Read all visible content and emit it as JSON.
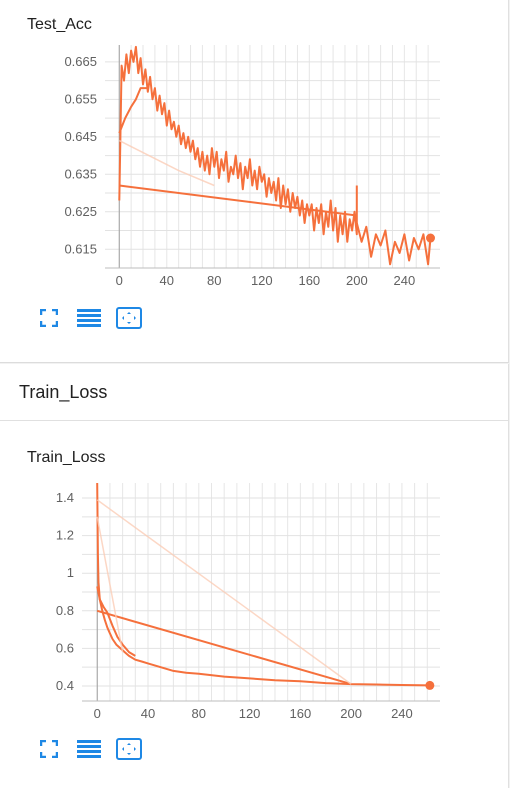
{
  "colors": {
    "accent": "#f5703c",
    "accent_light": "#fbcdb6",
    "icon_blue": "#1e88e5",
    "grid": "#dddddd",
    "tick_text": "#616161"
  },
  "cards": [
    {
      "title": "Test_Acc",
      "icons": [
        "fit-domain-icon",
        "toggle-log-icon",
        "expand-icon"
      ]
    },
    {
      "section_title": "Train_Loss",
      "title": "Train_Loss",
      "icons": [
        "fit-domain-icon",
        "toggle-log-icon",
        "expand-icon"
      ]
    }
  ],
  "chart_data": [
    {
      "type": "line",
      "title": "Test_Acc",
      "xlim": [
        -12,
        270
      ],
      "ylim": [
        0.61,
        0.6695
      ],
      "xticks": [
        "0",
        "40",
        "80",
        "120",
        "160",
        "200",
        "240"
      ],
      "xtick_values": [
        0,
        40,
        80,
        120,
        160,
        200,
        240
      ],
      "yticks": [
        "0.615",
        "0.625",
        "0.635",
        "0.645",
        "0.655",
        "0.665"
      ],
      "ytick_values": [
        0.615,
        0.625,
        0.635,
        0.645,
        0.655,
        0.665
      ],
      "series": [
        {
          "values": [
            [
              0,
              0.628
            ],
            [
              1,
              0.645
            ],
            [
              2,
              0.664
            ],
            [
              4,
              0.66
            ],
            [
              6,
              0.667
            ],
            [
              8,
              0.662
            ],
            [
              10,
              0.668
            ],
            [
              12,
              0.665
            ],
            [
              14,
              0.669
            ],
            [
              16,
              0.662
            ],
            [
              18,
              0.666
            ],
            [
              20,
              0.659
            ],
            [
              22,
              0.663
            ],
            [
              24,
              0.657
            ],
            [
              26,
              0.661
            ],
            [
              28,
              0.655
            ],
            [
              30,
              0.658
            ],
            [
              32,
              0.652
            ],
            [
              34,
              0.656
            ],
            [
              36,
              0.651
            ],
            [
              38,
              0.654
            ],
            [
              40,
              0.648
            ],
            [
              42,
              0.652
            ],
            [
              44,
              0.647
            ],
            [
              46,
              0.649
            ],
            [
              48,
              0.645
            ],
            [
              50,
              0.648
            ],
            [
              52,
              0.643
            ],
            [
              54,
              0.646
            ],
            [
              56,
              0.642
            ],
            [
              58,
              0.645
            ],
            [
              60,
              0.641
            ],
            [
              62,
              0.644
            ],
            [
              64,
              0.639
            ],
            [
              66,
              0.642
            ],
            [
              68,
              0.637
            ],
            [
              70,
              0.641
            ],
            [
              72,
              0.636
            ],
            [
              74,
              0.64
            ],
            [
              76,
              0.635
            ],
            [
              78,
              0.642
            ],
            [
              80,
              0.637
            ],
            [
              82,
              0.641
            ],
            [
              84,
              0.634
            ],
            [
              86,
              0.639
            ],
            [
              88,
              0.636
            ],
            [
              90,
              0.641
            ],
            [
              92,
              0.633
            ],
            [
              94,
              0.637
            ],
            [
              96,
              0.635
            ],
            [
              98,
              0.64
            ],
            [
              100,
              0.634
            ],
            [
              102,
              0.638
            ],
            [
              104,
              0.631
            ],
            [
              106,
              0.637
            ],
            [
              108,
              0.634
            ],
            [
              110,
              0.639
            ],
            [
              112,
              0.632
            ],
            [
              114,
              0.636
            ],
            [
              116,
              0.631
            ],
            [
              118,
              0.637
            ],
            [
              120,
              0.633
            ],
            [
              122,
              0.635
            ],
            [
              124,
              0.629
            ],
            [
              126,
              0.634
            ],
            [
              128,
              0.63
            ],
            [
              130,
              0.633
            ],
            [
              132,
              0.628
            ],
            [
              134,
              0.634
            ],
            [
              136,
              0.626
            ],
            [
              138,
              0.632
            ],
            [
              140,
              0.627
            ],
            [
              142,
              0.631
            ],
            [
              144,
              0.625
            ],
            [
              146,
              0.63
            ],
            [
              148,
              0.626
            ],
            [
              150,
              0.629
            ],
            [
              152,
              0.624
            ],
            [
              154,
              0.628
            ],
            [
              156,
              0.622
            ],
            [
              158,
              0.627
            ],
            [
              160,
              0.624
            ],
            [
              162,
              0.627
            ],
            [
              164,
              0.62
            ],
            [
              166,
              0.626
            ],
            [
              168,
              0.622
            ],
            [
              170,
              0.627
            ],
            [
              172,
              0.619
            ],
            [
              174,
              0.625
            ],
            [
              176,
              0.621
            ],
            [
              178,
              0.628
            ],
            [
              180,
              0.62
            ],
            [
              182,
              0.626
            ],
            [
              184,
              0.617
            ],
            [
              186,
              0.624
            ],
            [
              188,
              0.619
            ],
            [
              190,
              0.625
            ],
            [
              192,
              0.617
            ],
            [
              194,
              0.623
            ],
            [
              196,
              0.62
            ],
            [
              198,
              0.625
            ],
            [
              200,
              0.619
            ],
            [
              200,
              0.632
            ]
          ]
        },
        {
          "values": [
            [
              0,
              0.646
            ],
            [
              5,
              0.65
            ],
            [
              10,
              0.653
            ],
            [
              14,
              0.655
            ],
            [
              18,
              0.658
            ],
            [
              24,
              0.658
            ]
          ]
        },
        {
          "values": [
            [
              200,
              0.622
            ],
            [
              204,
              0.617
            ],
            [
              208,
              0.621
            ],
            [
              212,
              0.613
            ],
            [
              216,
              0.619
            ],
            [
              220,
              0.616
            ],
            [
              224,
              0.62
            ],
            [
              228,
              0.611
            ],
            [
              232,
              0.617
            ],
            [
              236,
              0.614
            ],
            [
              240,
              0.619
            ],
            [
              244,
              0.612
            ],
            [
              248,
              0.618
            ],
            [
              252,
              0.615
            ],
            [
              256,
              0.619
            ],
            [
              260,
              0.611
            ],
            [
              262,
              0.618
            ]
          ]
        },
        {
          "values": [
            [
              0,
              0.632
            ],
            [
              200,
              0.624
            ]
          ]
        },
        {
          "values": [
            [
              0,
              0.644
            ],
            [
              50,
              0.636
            ],
            [
              80,
              0.632
            ]
          ],
          "faint": true
        }
      ]
    },
    {
      "type": "line",
      "title": "Train_Loss",
      "xlim": [
        -12,
        270
      ],
      "ylim": [
        0.32,
        1.48
      ],
      "xticks": [
        "0",
        "40",
        "80",
        "120",
        "160",
        "200",
        "240"
      ],
      "xtick_values": [
        0,
        40,
        80,
        120,
        160,
        200,
        240
      ],
      "yticks": [
        "0.4",
        "0.6",
        "0.8",
        "1",
        "1.2",
        "1.4"
      ],
      "ytick_values": [
        0.4,
        0.6,
        0.8,
        1.0,
        1.2,
        1.4
      ],
      "series": [
        {
          "values": [
            [
              0,
              1.48
            ],
            [
              0.5,
              1.1
            ],
            [
              1,
              0.95
            ],
            [
              2,
              0.86
            ],
            [
              4,
              0.8
            ],
            [
              6,
              0.75
            ],
            [
              8,
              0.71
            ],
            [
              10,
              0.68
            ],
            [
              12,
              0.65
            ],
            [
              15,
              0.62
            ],
            [
              20,
              0.59
            ],
            [
              25,
              0.56
            ],
            [
              30,
              0.54
            ],
            [
              35,
              0.53
            ],
            [
              40,
              0.52
            ],
            [
              50,
              0.5
            ],
            [
              60,
              0.48
            ],
            [
              70,
              0.47
            ],
            [
              80,
              0.465
            ],
            [
              100,
              0.45
            ],
            [
              120,
              0.44
            ],
            [
              140,
              0.43
            ],
            [
              160,
              0.425
            ],
            [
              180,
              0.415
            ],
            [
              200,
              0.41
            ],
            [
              220,
              0.408
            ],
            [
              240,
              0.405
            ],
            [
              262,
              0.403
            ]
          ]
        },
        {
          "values": [
            [
              0,
              0.93
            ],
            [
              2,
              0.86
            ],
            [
              5,
              0.82
            ],
            [
              8,
              0.79
            ],
            [
              12,
              0.72
            ],
            [
              16,
              0.66
            ],
            [
              20,
              0.62
            ],
            [
              25,
              0.58
            ],
            [
              30,
              0.56
            ]
          ]
        },
        {
          "values": [
            [
              0,
              0.8
            ],
            [
              200,
              0.41
            ]
          ]
        },
        {
          "values": [
            [
              0,
              1.39
            ],
            [
              200,
              0.41
            ]
          ],
          "faint": true
        },
        {
          "values": [
            [
              0,
              1.3
            ],
            [
              20,
              0.58
            ]
          ],
          "faint": true
        }
      ]
    }
  ]
}
